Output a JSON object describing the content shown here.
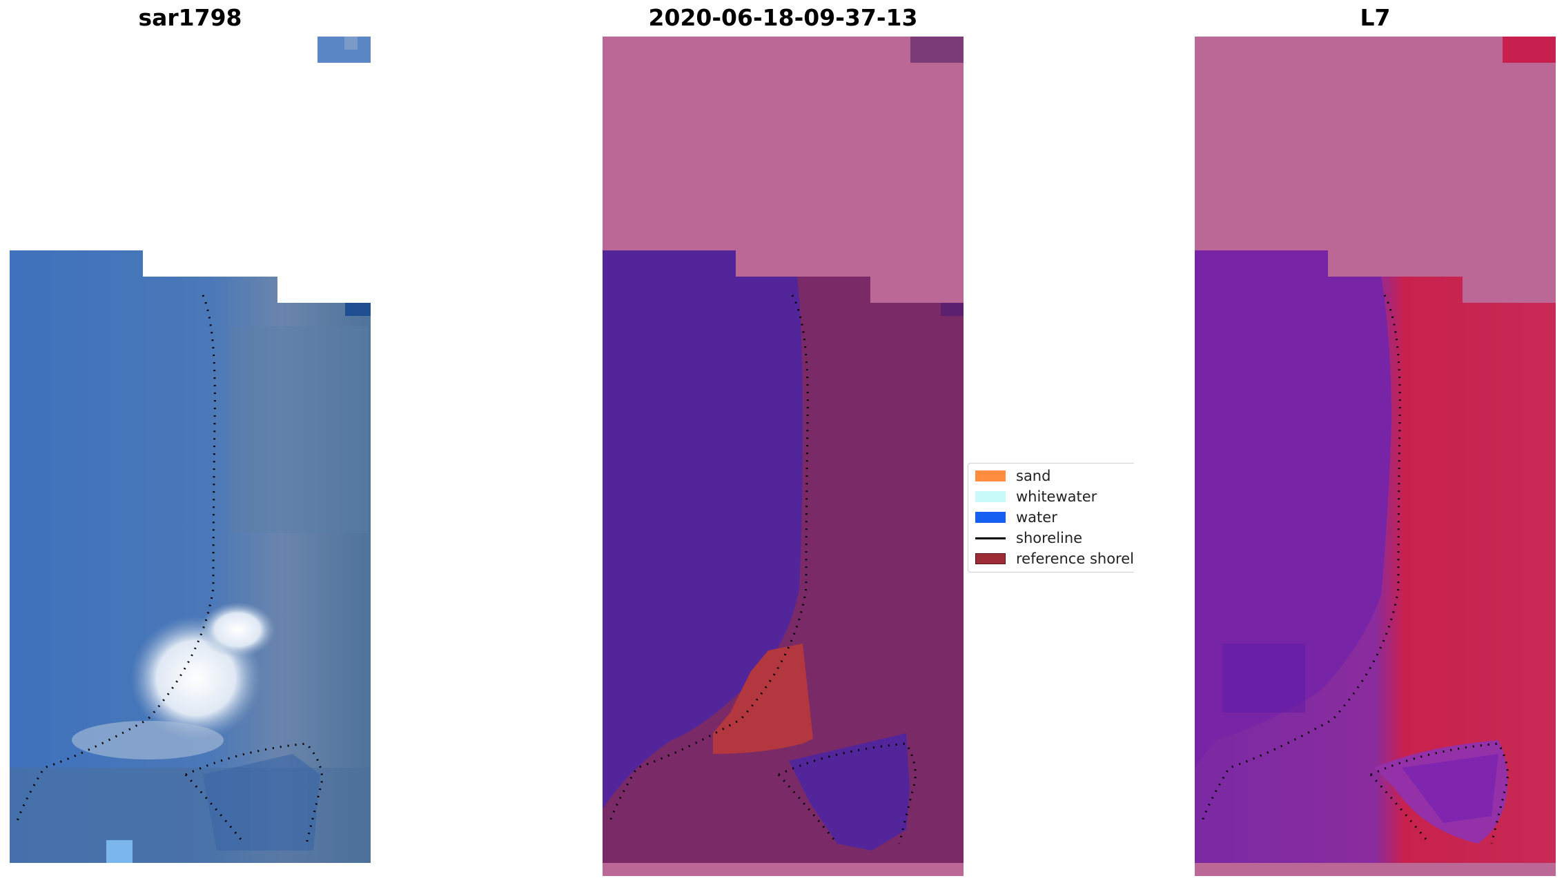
{
  "panels": [
    {
      "title": "sar1798"
    },
    {
      "title": "2020-06-18-09-37-13"
    },
    {
      "title": "L7"
    }
  ],
  "legend": {
    "items": [
      {
        "label": "sand",
        "kind": "patch",
        "color": "#ff8c3f"
      },
      {
        "label": "whitewater",
        "kind": "patch",
        "color": "#c8fafa"
      },
      {
        "label": "water",
        "kind": "patch",
        "color": "#1560f2"
      },
      {
        "label": "shoreline",
        "kind": "line",
        "color": "#000000"
      },
      {
        "label": "reference shoreline buffer",
        "kind": "patch",
        "color": "#9b2b34"
      }
    ]
  },
  "colors": {
    "rgb_water": "#3d75bd",
    "rgb_land": "#5a7fa8",
    "rgb_whitewater": "#f4f7fb",
    "nodata_pink": "#bb6896",
    "classified_water": "#53259a",
    "classified_land": "#7a2a66",
    "classified_sand": "#b3373f",
    "ndwi_water": "#7a2aa3",
    "ndwi_land": "#c8214e"
  }
}
